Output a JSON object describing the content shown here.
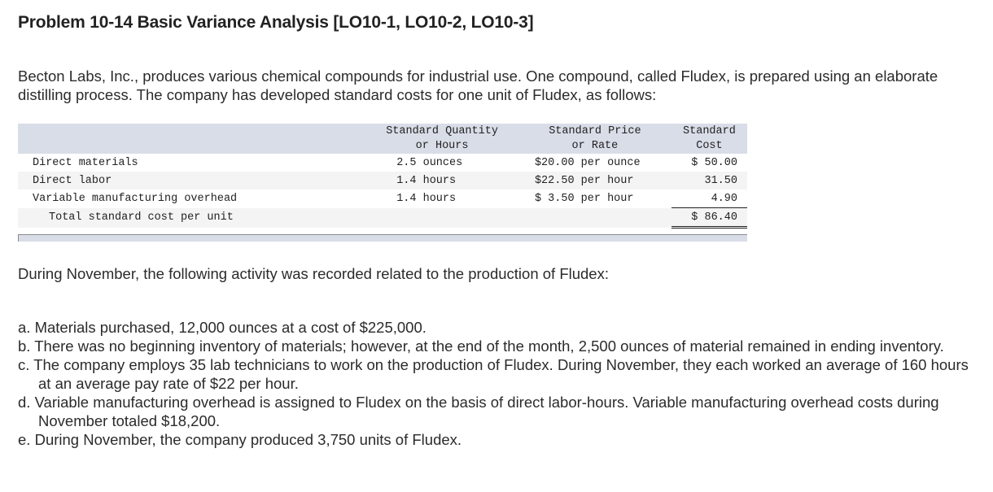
{
  "title": "Problem 10-14 Basic Variance Analysis [LO10-1, LO10-2, LO10-3]",
  "intro": "Becton Labs, Inc., produces various chemical compounds for industrial use. One compound, called Fludex, is prepared using an elaborate distilling process. The company has developed standard costs for one unit of Fludex, as follows:",
  "table": {
    "headers": {
      "label": "",
      "qty_line1": "Standard Quantity",
      "qty_line2": "or Hours",
      "price_line1": "Standard Price",
      "price_line2": "or Rate",
      "cost_line1": "Standard",
      "cost_line2": "Cost"
    },
    "rows": [
      {
        "label": "Direct materials",
        "qty": "2.5 ounces",
        "price": "$20.00 per ounce",
        "cost": "$ 50.00"
      },
      {
        "label": "Direct labor",
        "qty": "1.4 hours",
        "price": "$22.50 per hour",
        "cost": "31.50"
      },
      {
        "label": "Variable manufacturing overhead",
        "qty": "1.4 hours",
        "price": "$ 3.50 per hour",
        "cost": "4.90"
      }
    ],
    "total": {
      "label": "Total standard cost per unit",
      "cost": "$ 86.40"
    }
  },
  "activity_intro": "During November, the following activity was recorded related to the production of Fludex:",
  "activity": [
    {
      "marker": "a.",
      "text": "Materials purchased, 12,000 ounces at a cost of $225,000."
    },
    {
      "marker": "b.",
      "text": "There was no beginning inventory of materials; however, at the end of the month, 2,500 ounces of material remained in ending inventory."
    },
    {
      "marker": "c.",
      "text": "The company employs 35 lab technicians to work on the production of Fludex. During November, they each worked an average of 160 hours at an average pay rate of $22 per hour."
    },
    {
      "marker": "d.",
      "text": "Variable manufacturing overhead is assigned to Fludex on the basis of direct labor-hours. Variable manufacturing overhead costs during November totaled $18,200."
    },
    {
      "marker": "e.",
      "text": "During November, the company produced 3,750 units of Fludex."
    }
  ],
  "colors": {
    "table_header_bg": "#d9dde8",
    "table_alt_row_bg": "#f4f4f4",
    "text": "#2b2b2b"
  }
}
